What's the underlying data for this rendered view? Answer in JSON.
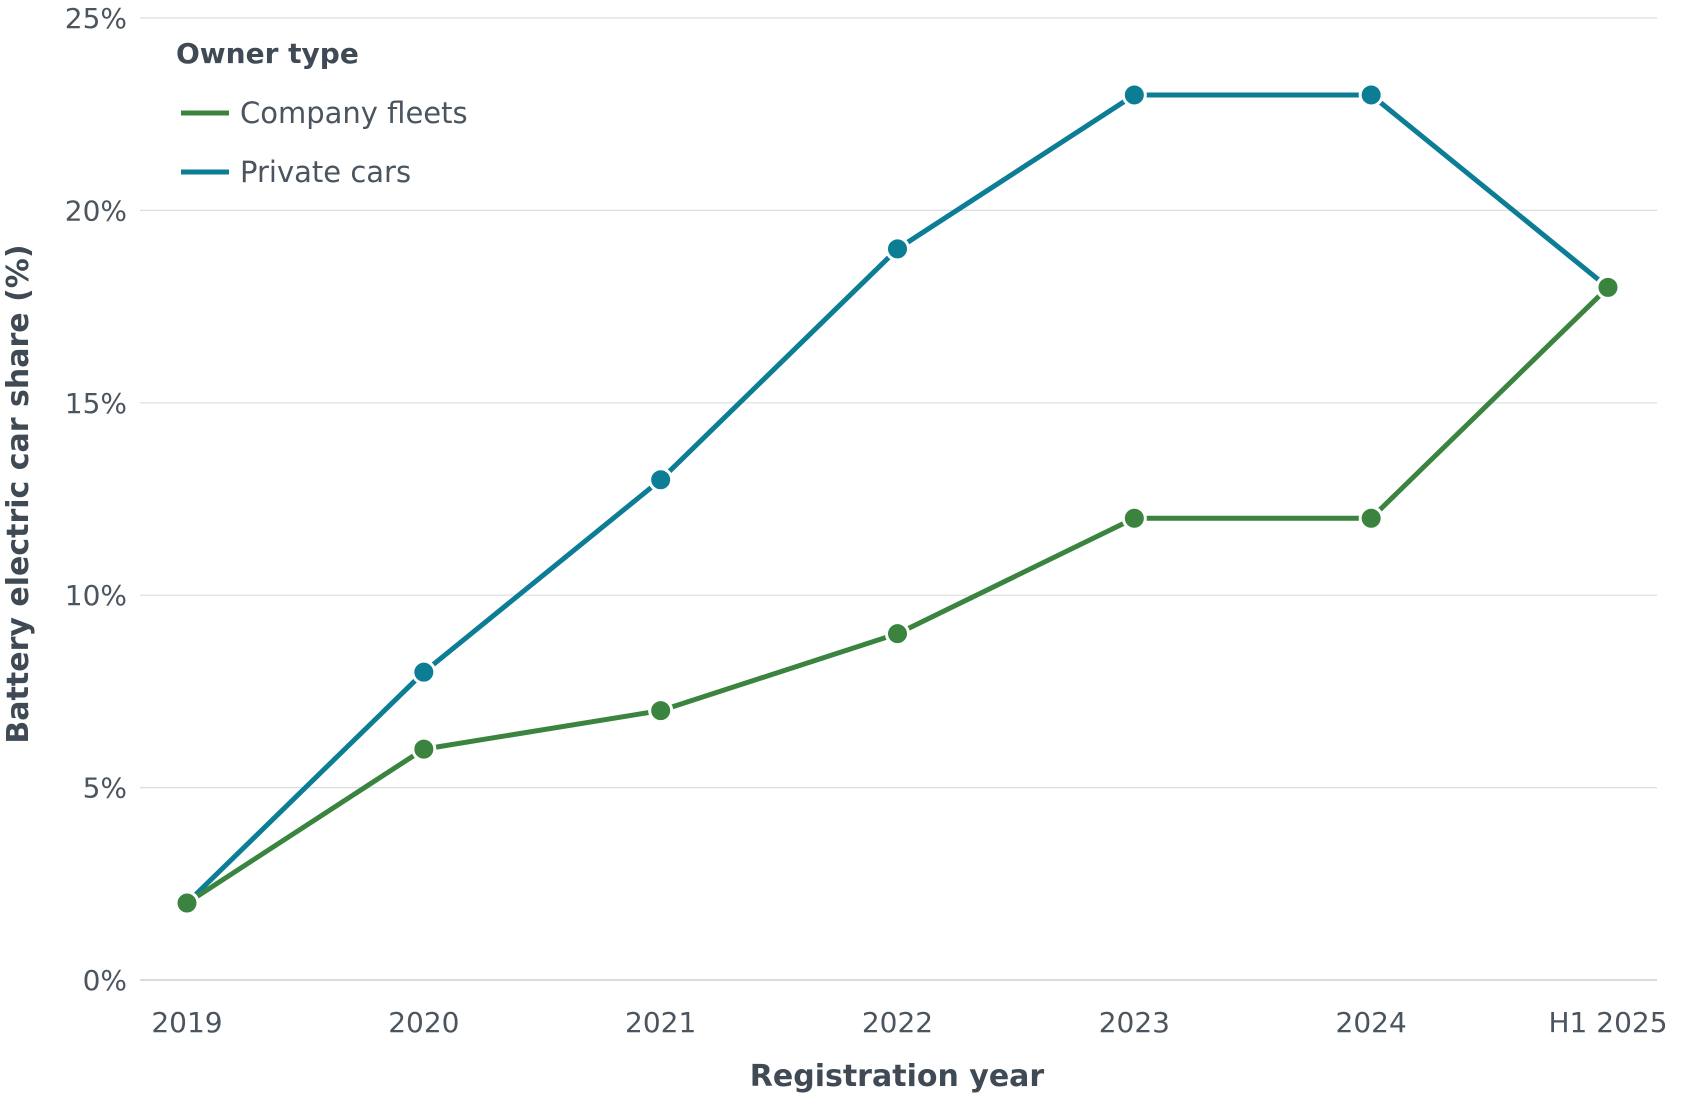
{
  "chart_data": {
    "type": "line",
    "categories": [
      "2019",
      "2020",
      "2021",
      "2022",
      "2023",
      "2024",
      "H1 2025"
    ],
    "series": [
      {
        "name": "Company fleets",
        "values": [
          2,
          6,
          7,
          9,
          12,
          12,
          18
        ],
        "color": "#3a8440"
      },
      {
        "name": "Private cars",
        "values": [
          2,
          8,
          13,
          19,
          23,
          23,
          18
        ],
        "color": "#0b7d94"
      }
    ],
    "xlabel": "Registration year",
    "ylabel": "Battery electric car share (%)",
    "ylim": [
      0,
      25
    ],
    "yticks": [
      "0%",
      "5%",
      "10%",
      "15%",
      "20%",
      "25%"
    ],
    "grid": true,
    "legend": {
      "title": "Owner type",
      "placement": "top-left"
    }
  }
}
